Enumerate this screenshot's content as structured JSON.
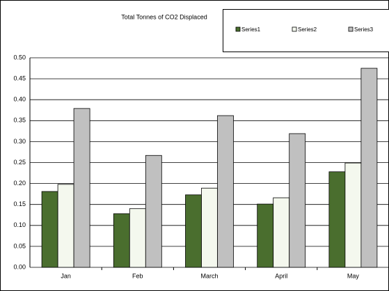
{
  "chart_data": {
    "type": "bar",
    "title": "Total Tonnes of CO2 Displaced",
    "categories": [
      "Jan",
      "Feb",
      "March",
      "April",
      "May"
    ],
    "series": [
      {
        "name": "Series1",
        "color": "#4a6e2e",
        "values": [
          0.181,
          0.128,
          0.173,
          0.151,
          0.228
        ]
      },
      {
        "name": "Series2",
        "color": "#f4f8ee",
        "values": [
          0.198,
          0.14,
          0.189,
          0.166,
          0.249
        ]
      },
      {
        "name": "Series3",
        "color": "#c0c0c0",
        "values": [
          0.379,
          0.267,
          0.362,
          0.319,
          0.475
        ]
      }
    ],
    "ylim": [
      0,
      0.5
    ],
    "yticks": [
      {
        "value": 0,
        "label": "0.00"
      },
      {
        "value": 0.05,
        "label": "0.05"
      },
      {
        "value": 0.1,
        "label": "0.10"
      },
      {
        "value": 0.15,
        "label": "0.15"
      },
      {
        "value": 0.2,
        "label": "0.20"
      },
      {
        "value": 0.25,
        "label": "0.25"
      },
      {
        "value": 0.3,
        "label": "0.30"
      },
      {
        "value": 0.35,
        "label": "0.35"
      },
      {
        "value": 0.4,
        "label": "0.40"
      },
      {
        "value": 0.45,
        "label": "0.45"
      },
      {
        "value": 0.5,
        "label": "0.50"
      }
    ],
    "grid": true,
    "legend": "top-right"
  }
}
